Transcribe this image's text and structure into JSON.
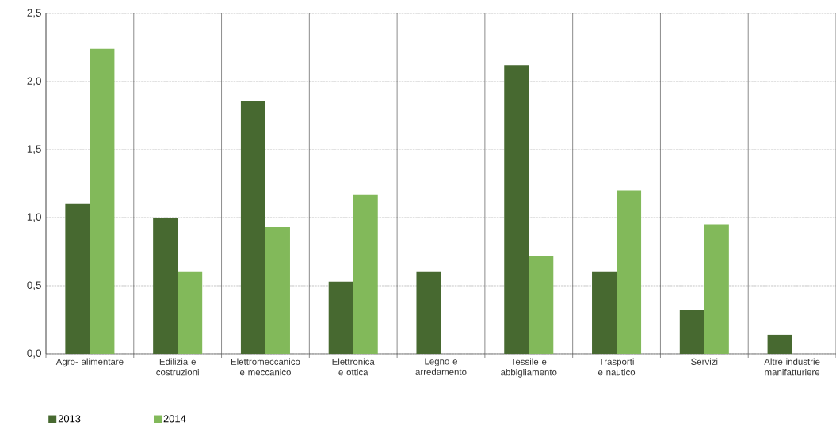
{
  "chart_data": {
    "type": "bar",
    "categories": [
      "Agro- alimentare",
      "Edilizia e costruzioni",
      "Elettromeccanico e meccanico",
      "Elettronica e ottica",
      "Legno e arredamento",
      "Tessile e abbigliamento",
      "Trasporti e nautico",
      "Servizi",
      "Altre industrie manifatturiere"
    ],
    "series": [
      {
        "name": "2013",
        "color": "#476930",
        "values": [
          1.1,
          1.0,
          1.86,
          0.53,
          0.6,
          2.12,
          0.6,
          0.32,
          0.14
        ]
      },
      {
        "name": "2014",
        "color": "#82b95a",
        "values": [
          2.24,
          0.6,
          0.93,
          1.17,
          null,
          0.72,
          1.2,
          0.95,
          null
        ]
      }
    ],
    "ylim": [
      0,
      2.5
    ],
    "yticks": [
      {
        "value": 0,
        "label": "0,0"
      },
      {
        "value": 0.5,
        "label": "0,5"
      },
      {
        "value": 1,
        "label": "1,0"
      },
      {
        "value": 1.5,
        "label": "1,5"
      },
      {
        "value": 2,
        "label": "2,0"
      },
      {
        "value": 2.5,
        "label": "2,5"
      }
    ],
    "grid": "y",
    "legend": "bottom left"
  }
}
